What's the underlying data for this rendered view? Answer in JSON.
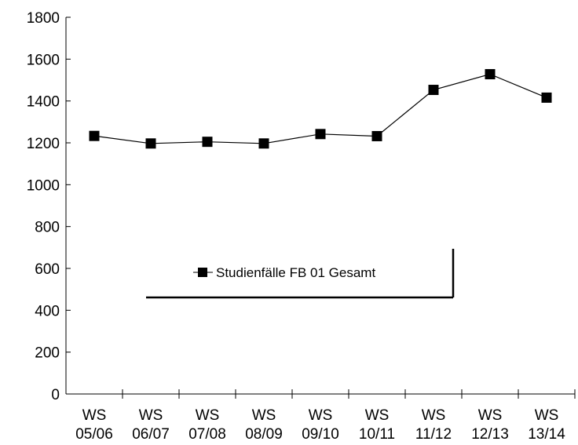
{
  "chart_data": {
    "type": "line",
    "title": "",
    "xlabel": "",
    "ylabel": "",
    "categories": [
      [
        "WS",
        "05/06"
      ],
      [
        "WS",
        "06/07"
      ],
      [
        "WS",
        "07/08"
      ],
      [
        "WS",
        "08/09"
      ],
      [
        "WS",
        "09/10"
      ],
      [
        "WS",
        "10/11"
      ],
      [
        "WS",
        "11/12"
      ],
      [
        "WS",
        "12/13"
      ],
      [
        "WS",
        "13/14"
      ]
    ],
    "series": [
      {
        "name": "Studienfälle FB 01 Gesamt",
        "values": [
          1233,
          1197,
          1205,
          1197,
          1242,
          1232,
          1453,
          1528,
          1416
        ],
        "color": "#000000",
        "marker": "square"
      }
    ],
    "ylim": [
      0,
      1800
    ],
    "yticks": [
      0,
      200,
      400,
      600,
      800,
      1000,
      1200,
      1400,
      1600,
      1800
    ],
    "grid": false,
    "legend": "center"
  }
}
